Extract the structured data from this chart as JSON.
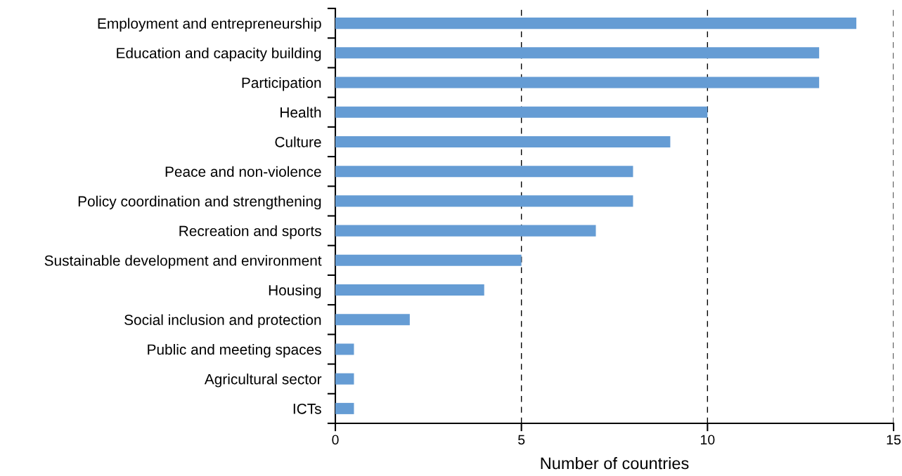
{
  "chart_data": {
    "type": "bar",
    "orientation": "horizontal",
    "xlabel": "Number of countries",
    "categories": [
      "Employment and entrepreneurship",
      "Education and capacity building",
      "Participation",
      "Health",
      "Culture",
      "Peace and non-violence",
      "Policy coordination and strengthening",
      "Recreation and sports",
      "Sustainable development and environment",
      "Housing",
      "Social inclusion and protection",
      "Public and meeting spaces",
      "Agricultural sector",
      "ICTs"
    ],
    "values": [
      14,
      13,
      13,
      10,
      9,
      8,
      8,
      7,
      5,
      4,
      2,
      0.5,
      0.5,
      0.5
    ],
    "color": "#659cd4",
    "xlim": [
      0,
      15
    ],
    "xticks": [
      0,
      5,
      10,
      15
    ],
    "grid": "x",
    "legend": false
  }
}
